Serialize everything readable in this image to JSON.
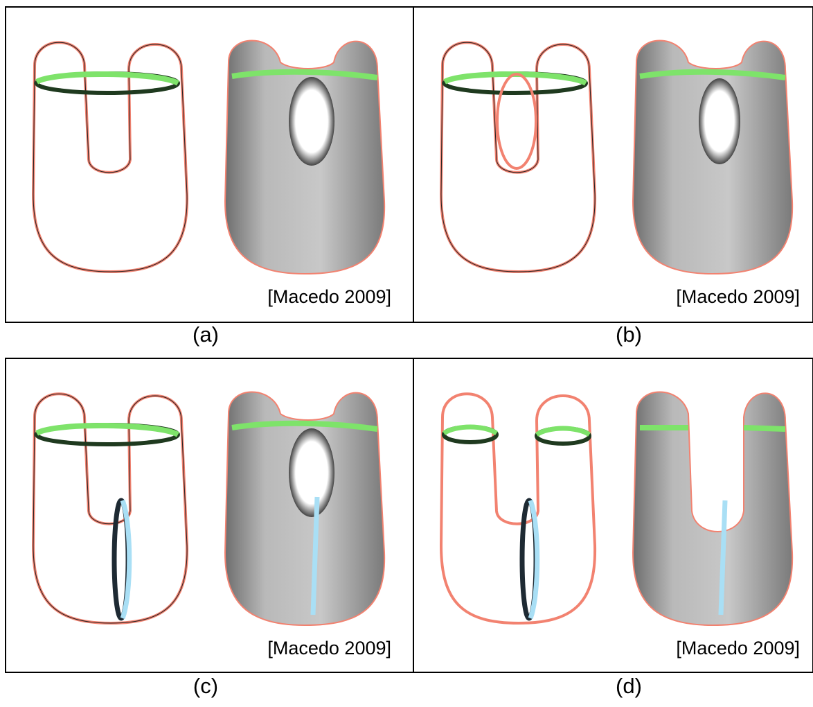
{
  "panels": [
    {
      "label": "(a)",
      "citation": "[Macedo 2009]"
    },
    {
      "label": "(b)",
      "citation": "[Macedo 2009]"
    },
    {
      "label": "(c)",
      "citation": "[Macedo 2009]"
    },
    {
      "label": "(d)",
      "citation": "[Macedo 2009]"
    }
  ]
}
